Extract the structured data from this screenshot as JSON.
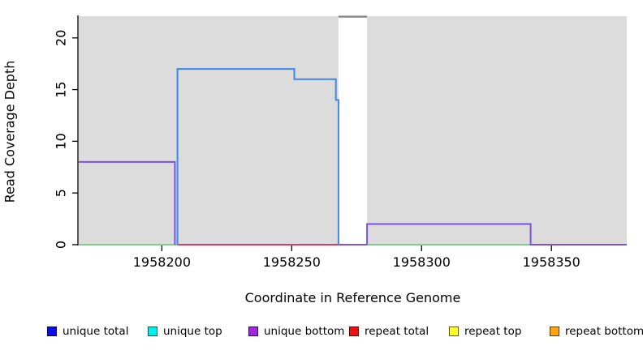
{
  "figure": {
    "background": "#ffffff",
    "plot_background": "#dcdcdc",
    "axis_color": "#000000"
  },
  "chart_data": {
    "type": "line",
    "subtype": "step-coverage",
    "title": "",
    "xlabel": "Coordinate in Reference Genome",
    "ylabel": "Read Coverage Depth",
    "xlim": [
      1958168,
      1958379
    ],
    "ylim": [
      0,
      22.1
    ],
    "x_ticks": [
      1958200,
      1958250,
      1958300,
      1958350
    ],
    "y_ticks": [
      0,
      5,
      10,
      15,
      20
    ],
    "grid": false,
    "plot_background": "#dcdcdc",
    "highlight_region": {
      "x0": 1958268,
      "x1": 1958279,
      "color": "#ffffff",
      "offscale_marker_color": "#848484"
    },
    "series": [
      {
        "name": "zero-baseline-left",
        "color": "#7fcf8c",
        "points": [
          [
            1958168,
            0
          ],
          [
            1958206,
            0
          ]
        ]
      },
      {
        "name": "zero-baseline-mid",
        "color": "#dd3a64",
        "points": [
          [
            1958206,
            0
          ],
          [
            1958268,
            0
          ]
        ]
      },
      {
        "name": "zero-baseline-band",
        "color": "#7a52e6",
        "points": [
          [
            1958268,
            0
          ],
          [
            1958279,
            0
          ]
        ]
      },
      {
        "name": "zero-baseline-right",
        "color": "#7fcf8c",
        "points": [
          [
            1958279,
            0
          ],
          [
            1958342,
            0
          ]
        ]
      },
      {
        "name": "unique-bottom-left",
        "color": "#7a52e6",
        "points": [
          [
            1958168,
            8
          ],
          [
            1958205,
            8
          ],
          [
            1958205,
            0
          ]
        ]
      },
      {
        "name": "unique-bottom-right",
        "color": "#7a52e6",
        "points": [
          [
            1958279,
            0
          ],
          [
            1958279,
            2
          ],
          [
            1958342,
            2
          ],
          [
            1958342,
            0
          ],
          [
            1958379,
            0
          ]
        ]
      },
      {
        "name": "unique-total",
        "color": "#3c86ec",
        "points": [
          [
            1958206,
            0
          ],
          [
            1958206,
            17
          ],
          [
            1958251,
            17
          ],
          [
            1958251,
            16
          ],
          [
            1958267,
            16
          ],
          [
            1958267,
            14
          ],
          [
            1958268,
            14
          ],
          [
            1958268,
            0
          ]
        ]
      }
    ],
    "legend": {
      "position": "bottom",
      "entries": [
        {
          "label": "unique total",
          "fill": "#0d0de8",
          "border": "#000060"
        },
        {
          "label": "unique top",
          "fill": "#00f0f0",
          "border": "#006060"
        },
        {
          "label": "unique bottom",
          "fill": "#a228e0",
          "border": "#3d0060"
        },
        {
          "label": "repeat total",
          "fill": "#ee1111",
          "border": "#600000"
        },
        {
          "label": "repeat top",
          "fill": "#ffff2a",
          "border": "#606000"
        },
        {
          "label": "repeat bottom",
          "fill": "#ffa513",
          "border": "#604000"
        }
      ]
    }
  }
}
